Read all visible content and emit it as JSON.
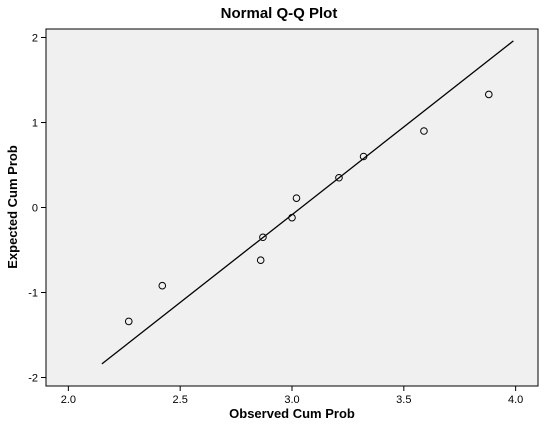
{
  "chart_data": {
    "type": "scatter",
    "title": "Normal Q-Q Plot",
    "xlabel": "Observed Cum Prob",
    "ylabel": "Expected Cum Prob",
    "xlim": [
      1.9,
      4.1
    ],
    "ylim": [
      -2.1,
      2.1
    ],
    "xticks": [
      2.0,
      2.5,
      3.0,
      3.5,
      4.0
    ],
    "xtick_labels": [
      "2.0",
      "2.5",
      "3.0",
      "3.5",
      "4.0"
    ],
    "yticks": [
      -2,
      -1,
      0,
      1,
      2
    ],
    "ytick_labels": [
      "-2",
      "-1",
      "0",
      "1",
      "2"
    ],
    "grid": false,
    "background": "#f0f0f0",
    "points": [
      {
        "x": 2.27,
        "y": -1.34
      },
      {
        "x": 2.42,
        "y": -0.92
      },
      {
        "x": 2.86,
        "y": -0.62
      },
      {
        "x": 2.87,
        "y": -0.35
      },
      {
        "x": 3.0,
        "y": -0.12
      },
      {
        "x": 3.02,
        "y": 0.11
      },
      {
        "x": 3.21,
        "y": 0.35
      },
      {
        "x": 3.32,
        "y": 0.6
      },
      {
        "x": 3.59,
        "y": 0.9
      },
      {
        "x": 3.88,
        "y": 1.33
      }
    ],
    "reference_line": {
      "x": [
        2.15,
        3.99
      ],
      "y": [
        -1.84,
        1.96
      ]
    }
  }
}
